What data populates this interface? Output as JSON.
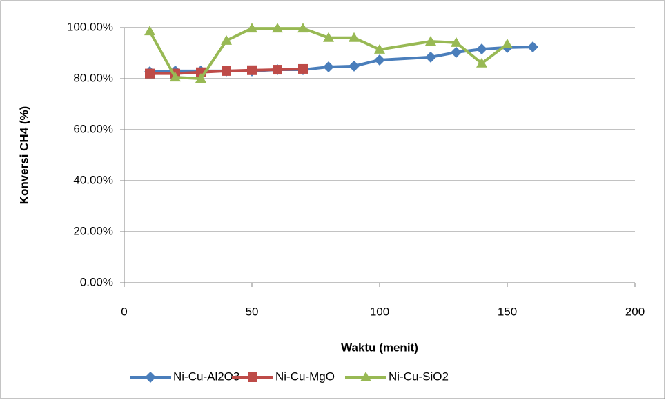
{
  "chart_data": {
    "type": "line",
    "x_label": "Waktu (menit)",
    "y_label": "Konversi CH4 (%)",
    "xlim": [
      0,
      200
    ],
    "xticks": [
      0,
      50,
      100,
      150,
      200
    ],
    "ylim": [
      0,
      100
    ],
    "yticks": [
      {
        "value": 0,
        "label": "0.00%"
      },
      {
        "value": 20,
        "label": "20.00%"
      },
      {
        "value": 40,
        "label": "40.00%"
      },
      {
        "value": 60,
        "label": "60.00%"
      },
      {
        "value": 80,
        "label": "80.00%"
      },
      {
        "value": 100,
        "label": "100.00%"
      }
    ],
    "grid": true,
    "legend": "bottom",
    "series": [
      {
        "name": "Ni-Cu-Al2O3",
        "color": "#4a7ebb",
        "marker": "diamond",
        "x": [
          10,
          20,
          30,
          40,
          50,
          60,
          70,
          80,
          90,
          100,
          120,
          130,
          140,
          150,
          160
        ],
        "values": [
          82.7,
          83,
          83,
          83,
          83,
          83.5,
          83.5,
          84.6,
          84.9,
          87.3,
          88.4,
          90.3,
          91.6,
          92.2,
          92.4
        ]
      },
      {
        "name": "Ni-Cu-MgO",
        "color": "#be4b48",
        "marker": "square",
        "x": [
          10,
          20,
          30,
          40,
          50,
          60,
          70
        ],
        "values": [
          82,
          82,
          82.5,
          83,
          83.3,
          83.5,
          83.8
        ]
      },
      {
        "name": "Ni-Cu-SiO2",
        "color": "#98b954",
        "marker": "triangle",
        "x": [
          10,
          20,
          30,
          40,
          50,
          60,
          70,
          80,
          90,
          100,
          120,
          130,
          140,
          150
        ],
        "values": [
          98.6,
          80.5,
          80,
          94.9,
          99.7,
          99.7,
          99.7,
          96,
          96,
          91.4,
          94.6,
          94.1,
          86,
          93.5
        ]
      }
    ]
  }
}
